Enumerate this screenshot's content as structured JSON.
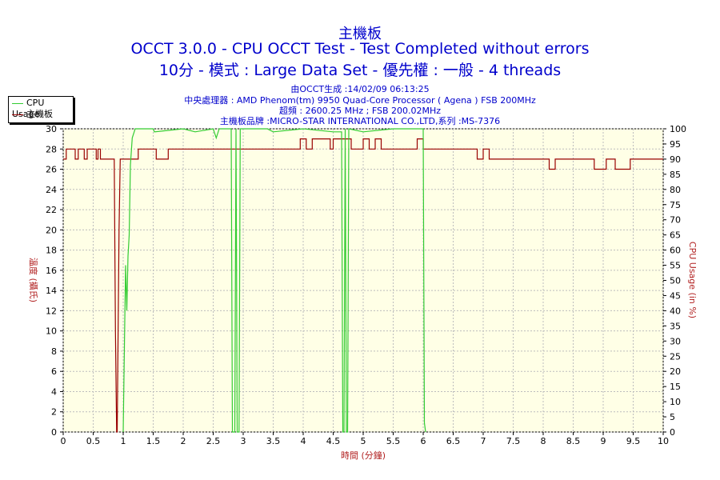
{
  "chart_data": {
    "type": "line",
    "title": "主機板",
    "subtitle_lines": [
      "OCCT 3.0.0 - CPU OCCT Test - Test Completed without errors",
      "10分 - 模式 : Large Data Set - 優先權 : 一般 - 4 threads"
    ],
    "info_lines": [
      "由OCCT生成 :14/02/09 06:13:25",
      "中央處理器 : AMD Phenom(tm) 9950 Quad-Core Processor ( Agena ) FSB 200MHz",
      "超頻 : 2600.25 MHz ; FSB 200.02MHz",
      "主機板品牌 :MICRO-STAR INTERNATIONAL CO.,LTD,系列 :MS-7376"
    ],
    "xlabel": "時間 (分鐘)",
    "ylabel_left": "溫度 (攝氏)",
    "ylabel_right": "CPU Usage (in %)",
    "xlim": [
      0,
      10
    ],
    "ylim_left": [
      0,
      30
    ],
    "ylim_right": [
      0,
      100
    ],
    "x_ticks": [
      "0",
      "0.5",
      "1",
      "1.5",
      "2",
      "2.5",
      "3",
      "3.5",
      "4",
      "4.5",
      "5",
      "5.5",
      "6",
      "6.5",
      "7",
      "7.5",
      "8",
      "8.5",
      "9",
      "9.5",
      "10"
    ],
    "y_left_ticks": [
      "0",
      "2",
      "4",
      "6",
      "8",
      "10",
      "12",
      "14",
      "16",
      "18",
      "20",
      "22",
      "24",
      "26",
      "28",
      "30"
    ],
    "y_right_ticks": [
      "0",
      "5",
      "10",
      "15",
      "20",
      "25",
      "30",
      "35",
      "40",
      "45",
      "50",
      "55",
      "60",
      "65",
      "70",
      "75",
      "80",
      "85",
      "90",
      "95",
      "100"
    ],
    "grid": true,
    "legend_position": "top-left",
    "colors": {
      "cpu": "#33cc33",
      "board": "#990000",
      "plot_bg": "#ffffe6",
      "title": "#0000cc",
      "axis_label": "#b22222"
    },
    "series": [
      {
        "name": "CPU Usage",
        "axis": "right",
        "color": "#33cc33",
        "points": [
          [
            1.0,
            0
          ],
          [
            1.02,
            28
          ],
          [
            1.04,
            55
          ],
          [
            1.06,
            40
          ],
          [
            1.08,
            58
          ],
          [
            1.1,
            65
          ],
          [
            1.12,
            88
          ],
          [
            1.15,
            97
          ],
          [
            1.2,
            100
          ],
          [
            1.5,
            100
          ],
          [
            1.52,
            99
          ],
          [
            2.0,
            100
          ],
          [
            2.2,
            99
          ],
          [
            2.5,
            100
          ],
          [
            2.55,
            97
          ],
          [
            2.6,
            100
          ],
          [
            2.8,
            100
          ],
          [
            2.82,
            0
          ],
          [
            2.86,
            0
          ],
          [
            2.88,
            100
          ],
          [
            2.9,
            0
          ],
          [
            2.93,
            0
          ],
          [
            2.95,
            100
          ],
          [
            3.4,
            100
          ],
          [
            3.5,
            99
          ],
          [
            4.0,
            100
          ],
          [
            4.5,
            99
          ],
          [
            4.64,
            99
          ],
          [
            4.66,
            0
          ],
          [
            4.68,
            0
          ],
          [
            4.7,
            100
          ],
          [
            4.72,
            0
          ],
          [
            4.74,
            0
          ],
          [
            4.76,
            100
          ],
          [
            5.0,
            99
          ],
          [
            5.5,
            100
          ],
          [
            6.0,
            100
          ],
          [
            6.02,
            3
          ],
          [
            6.04,
            0
          ]
        ]
      },
      {
        "name": "主機板",
        "axis": "left",
        "color": "#990000",
        "points": [
          [
            0,
            27
          ],
          [
            0.05,
            27
          ],
          [
            0.05,
            28
          ],
          [
            0.2,
            28
          ],
          [
            0.2,
            27
          ],
          [
            0.25,
            27
          ],
          [
            0.25,
            28
          ],
          [
            0.35,
            28
          ],
          [
            0.35,
            27
          ],
          [
            0.4,
            27
          ],
          [
            0.4,
            28
          ],
          [
            0.55,
            28
          ],
          [
            0.55,
            27
          ],
          [
            0.58,
            27
          ],
          [
            0.58,
            28
          ],
          [
            0.62,
            28
          ],
          [
            0.62,
            27
          ],
          [
            0.85,
            27
          ],
          [
            0.87,
            10
          ],
          [
            0.89,
            0
          ],
          [
            0.9,
            0
          ],
          [
            0.93,
            20
          ],
          [
            0.95,
            27
          ],
          [
            1.25,
            27
          ],
          [
            1.25,
            28
          ],
          [
            1.55,
            28
          ],
          [
            1.55,
            27
          ],
          [
            1.75,
            27
          ],
          [
            1.75,
            28
          ],
          [
            3.95,
            28
          ],
          [
            3.95,
            29
          ],
          [
            4.05,
            29
          ],
          [
            4.05,
            28
          ],
          [
            4.15,
            28
          ],
          [
            4.15,
            29
          ],
          [
            4.45,
            29
          ],
          [
            4.45,
            28
          ],
          [
            4.5,
            28
          ],
          [
            4.5,
            29
          ],
          [
            4.8,
            29
          ],
          [
            4.8,
            28
          ],
          [
            5.0,
            28
          ],
          [
            5.0,
            29
          ],
          [
            5.1,
            29
          ],
          [
            5.1,
            28
          ],
          [
            5.2,
            28
          ],
          [
            5.2,
            29
          ],
          [
            5.3,
            29
          ],
          [
            5.3,
            28
          ],
          [
            5.9,
            28
          ],
          [
            5.9,
            29
          ],
          [
            6.0,
            29
          ],
          [
            6.0,
            28
          ],
          [
            6.9,
            28
          ],
          [
            6.9,
            27
          ],
          [
            7.0,
            27
          ],
          [
            7.0,
            28
          ],
          [
            7.1,
            28
          ],
          [
            7.1,
            27
          ],
          [
            8.1,
            27
          ],
          [
            8.1,
            26
          ],
          [
            8.2,
            26
          ],
          [
            8.2,
            27
          ],
          [
            8.85,
            27
          ],
          [
            8.85,
            26
          ],
          [
            9.05,
            26
          ],
          [
            9.05,
            27
          ],
          [
            9.2,
            27
          ],
          [
            9.2,
            26
          ],
          [
            9.45,
            26
          ],
          [
            9.45,
            27
          ],
          [
            10,
            27
          ]
        ]
      }
    ]
  }
}
